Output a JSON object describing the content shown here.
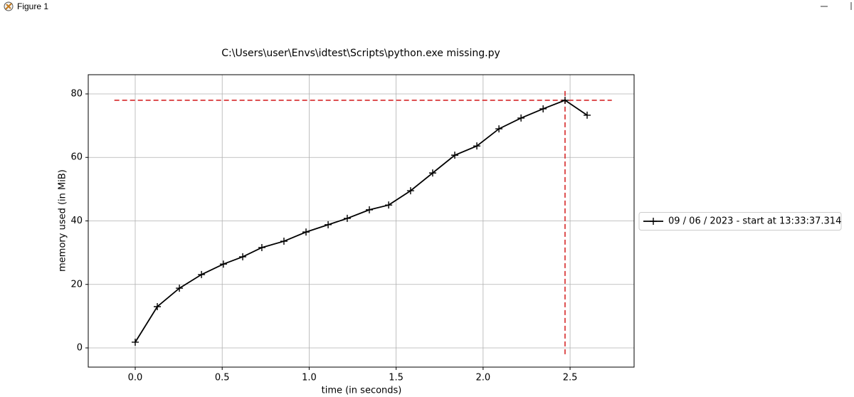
{
  "window": {
    "title": "Figure 1"
  },
  "chart_data": {
    "type": "line",
    "title": "C:\\Users\\user\\Envs\\idtest\\Scripts\\python.exe missing.py",
    "x_label": "time (in seconds)",
    "y_label": "memory used (in MiB)",
    "x": [
      0.0,
      0.127,
      0.254,
      0.381,
      0.507,
      0.618,
      0.728,
      0.855,
      0.982,
      1.109,
      1.219,
      1.346,
      1.457,
      1.583,
      1.71,
      1.837,
      1.964,
      2.091,
      2.218,
      2.345,
      2.471,
      2.598
    ],
    "series": [
      {
        "name": "09 / 06 / 2023 - start at 13:33:37.314",
        "color": "#000000",
        "marker": "+",
        "values": [
          1.8,
          13.0,
          18.8,
          23.1,
          26.4,
          28.7,
          31.6,
          33.6,
          36.5,
          38.8,
          40.8,
          43.5,
          45.0,
          49.5,
          55.1,
          60.7,
          63.6,
          69.0,
          72.4,
          75.3,
          78.0,
          73.3
        ]
      }
    ],
    "reference_lines": [
      {
        "orientation": "h",
        "value": 78.0,
        "from": -0.12,
        "to": 2.74,
        "color": "#d62728"
      },
      {
        "orientation": "v",
        "value": 2.471,
        "from": -2,
        "to": 81,
        "color": "#d62728"
      }
    ],
    "xlim": [
      -0.27,
      2.868
    ],
    "ylim": [
      -6.05,
      86.05
    ],
    "xticks": [
      {
        "value": 0,
        "label": "0.0"
      },
      {
        "value": 0.5,
        "label": "0.5"
      },
      {
        "value": 1,
        "label": "1.0"
      },
      {
        "value": 1.5,
        "label": "1.5"
      },
      {
        "value": 2,
        "label": "2.0"
      },
      {
        "value": 2.5,
        "label": "2.5"
      }
    ],
    "yticks": [
      0,
      20,
      40,
      60,
      80
    ],
    "grid": true,
    "legend_position": "outside-right"
  }
}
